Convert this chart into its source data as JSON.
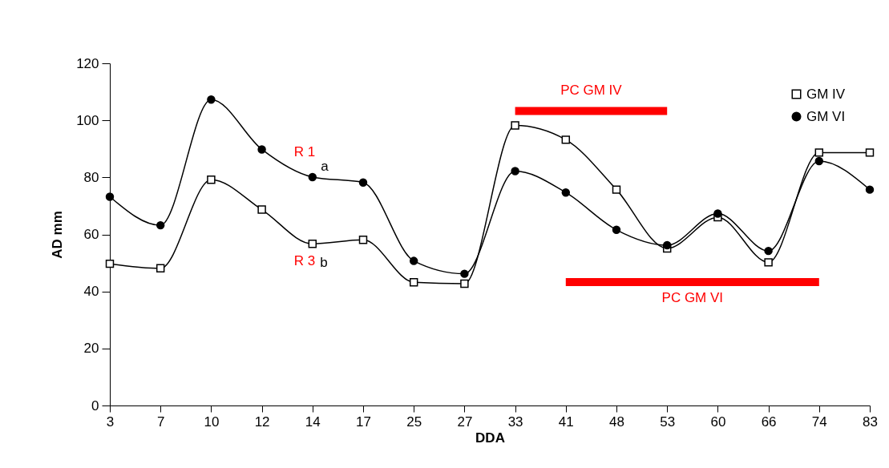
{
  "chart_data": {
    "type": "line",
    "xlabel": "DDA",
    "ylabel": "AD mm",
    "categories": [
      "3",
      "7",
      "10",
      "12",
      "14",
      "17",
      "25",
      "27",
      "33",
      "41",
      "48",
      "53",
      "60",
      "66",
      "74",
      "83"
    ],
    "series": [
      {
        "name": "GM IV",
        "color": "#000000",
        "marker": "square",
        "values": [
          49.7,
          48.1,
          79.2,
          68.7,
          56.7,
          58.1,
          43.2,
          42.7,
          98.2,
          93.2,
          75.7,
          55.1,
          66.0,
          50.2,
          88.7,
          88.7
        ]
      },
      {
        "name": "GM VI",
        "color": "#000000",
        "marker": "circle",
        "values": [
          73.2,
          63.2,
          107.3,
          89.8,
          80.1,
          78.2,
          50.7,
          46.2,
          82.2,
          74.7,
          61.6,
          56.2,
          67.3,
          54.2,
          85.7,
          75.7
        ]
      },
      {
        "name": "PC  GM IV",
        "color": "#ff0000",
        "marker": "none",
        "values": [
          null,
          null,
          null,
          null,
          null,
          null,
          null,
          null,
          103.3,
          103.3,
          103.3,
          103.3,
          null,
          null,
          null,
          null
        ]
      },
      {
        "name": "PC GM VI",
        "color": "#ff0000",
        "marker": "none",
        "values": [
          null,
          null,
          null,
          null,
          null,
          null,
          null,
          null,
          null,
          43.3,
          43.3,
          43.3,
          43.3,
          43.3,
          43.3,
          null
        ]
      }
    ],
    "ylim": [
      0,
      120
    ],
    "yticks": [
      0,
      20,
      40,
      60,
      80,
      100,
      120
    ],
    "legend": "top right",
    "line_style": "solid",
    "annotations": [
      "R 1",
      "a",
      "R 3",
      "b"
    ]
  }
}
